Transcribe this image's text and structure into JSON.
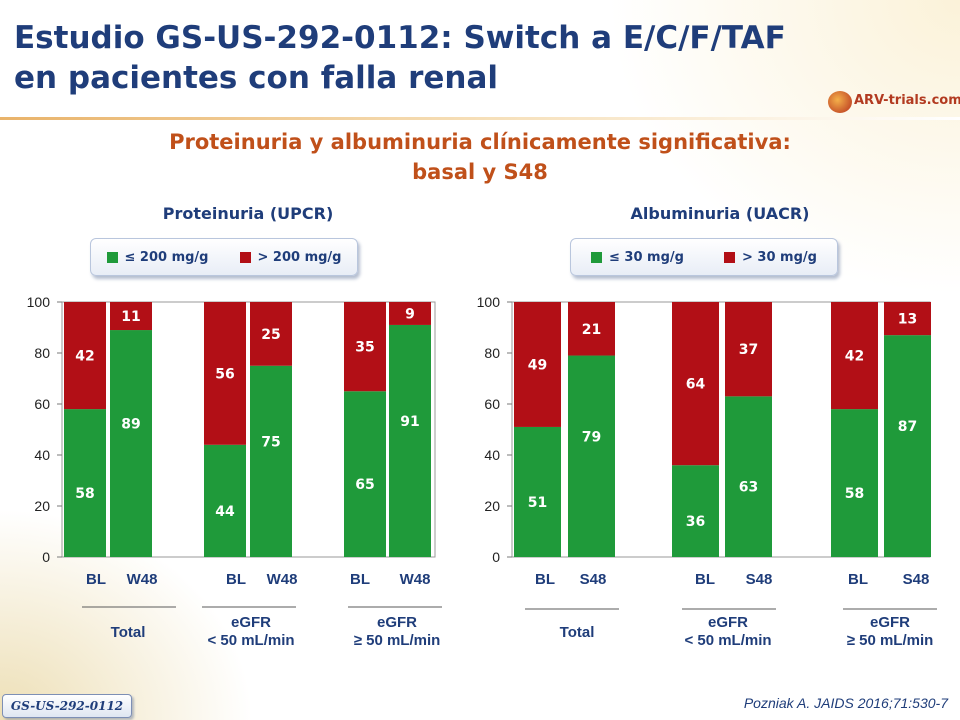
{
  "slide": {
    "title_line1": "Estudio GS-US-292-0112: Switch a E/C/F/TAF",
    "title_line2": "en pacientes con falla renal",
    "subtitle_line1": "Proteinuria y albuminuria clínicamente significativa:",
    "subtitle_line2": "basal y S48",
    "logo_text": "ARV-trials.com",
    "footer_badge": "GS-US-292-0112",
    "reference": "Pozniak A. JAIDS 2016;71:530-7"
  },
  "colors": {
    "green": "#1f9a3a",
    "red": "#b20f16",
    "title": "#1f3d7a",
    "subtitle": "#c0501a"
  },
  "chart_data": [
    {
      "type": "bar",
      "stacked": true,
      "title": "Proteinuria (UPCR)",
      "ylim": [
        0,
        100
      ],
      "yticks": [
        0,
        20,
        40,
        60,
        80,
        100
      ],
      "legend": [
        "≤ 200 mg/g",
        "> 200 mg/g"
      ],
      "categories": [
        "BL",
        "W48",
        "BL",
        "W48",
        "BL",
        "W48"
      ],
      "groups": [
        {
          "label_lines": [
            "Total"
          ]
        },
        {
          "label_lines": [
            "eGFR",
            "< 50 mL/min"
          ]
        },
        {
          "label_lines": [
            "eGFR",
            "≥ 50 mL/min"
          ]
        }
      ],
      "series": [
        {
          "name": "≤ 200 mg/g",
          "values": [
            58,
            89,
            44,
            75,
            65,
            91
          ]
        },
        {
          "name": "> 200 mg/g",
          "values": [
            42,
            11,
            56,
            25,
            35,
            9
          ]
        }
      ]
    },
    {
      "type": "bar",
      "stacked": true,
      "title": "Albuminuria (UACR)",
      "ylim": [
        0,
        100
      ],
      "yticks": [
        0,
        20,
        40,
        60,
        80,
        100
      ],
      "legend": [
        "≤ 30 mg/g",
        "> 30 mg/g"
      ],
      "categories": [
        "BL",
        "S48",
        "BL",
        "S48",
        "BL",
        "S48"
      ],
      "groups": [
        {
          "label_lines": [
            "Total"
          ]
        },
        {
          "label_lines": [
            "eGFR",
            "< 50 mL/min"
          ]
        },
        {
          "label_lines": [
            "eGFR",
            "≥ 50 mL/min"
          ]
        }
      ],
      "series": [
        {
          "name": "≤ 30 mg/g",
          "values": [
            51,
            79,
            36,
            63,
            58,
            87
          ]
        },
        {
          "name": "> 30 mg/g",
          "values": [
            49,
            21,
            64,
            37,
            42,
            13
          ]
        }
      ]
    }
  ]
}
